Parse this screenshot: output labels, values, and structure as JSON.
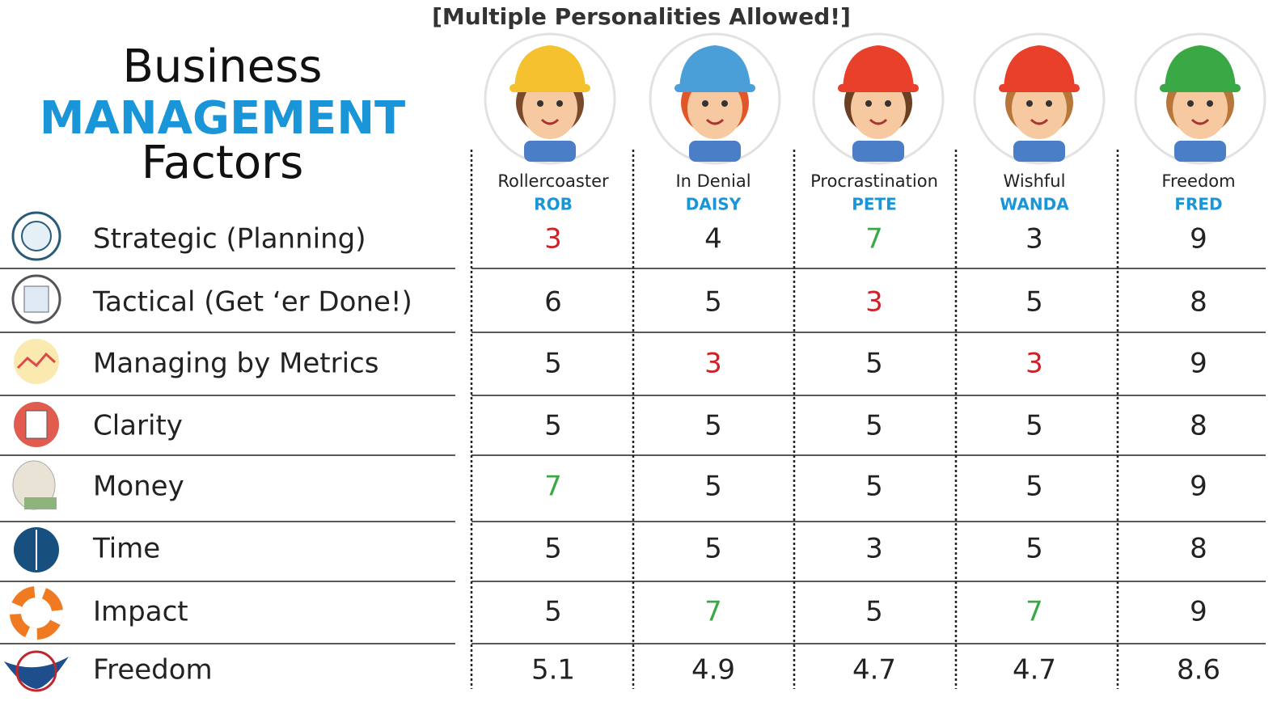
{
  "header": {
    "subtitle": "[Multiple Personalities Allowed!]",
    "title": [
      "Business",
      "MANAGEMENT",
      "Factors"
    ]
  },
  "table": {
    "columns": [
      {
        "role": "Rollercoaster",
        "name": "ROB"
      },
      {
        "role": "In Denial",
        "name": "DAISY"
      },
      {
        "role": "Procrastination",
        "name": "PETE"
      },
      {
        "role": "Wishful",
        "name": "WANDA"
      },
      {
        "role": "Freedom",
        "name": "FRED"
      }
    ],
    "rows": [
      {
        "label": "Strategic (Planning)",
        "values": [
          3,
          4,
          7,
          3,
          9
        ],
        "colors": [
          "#d0202a",
          "#222222",
          "#3aa845",
          "#222222",
          "#222222"
        ]
      },
      {
        "label": "Tactical (Get ‘er Done!)",
        "values": [
          6,
          5,
          3,
          5,
          8
        ],
        "colors": [
          "#222222",
          "#222222",
          "#d0202a",
          "#222222",
          "#222222"
        ]
      },
      {
        "label": "Managing by Metrics",
        "values": [
          5,
          3,
          5,
          3,
          9
        ],
        "colors": [
          "#222222",
          "#d0202a",
          "#222222",
          "#d0202a",
          "#222222"
        ]
      },
      {
        "label": "Clarity",
        "values": [
          5,
          5,
          5,
          5,
          8
        ],
        "colors": [
          "#222222",
          "#222222",
          "#222222",
          "#222222",
          "#222222"
        ]
      },
      {
        "label": "Money",
        "values": [
          7,
          5,
          5,
          5,
          9
        ],
        "colors": [
          "#3aa845",
          "#222222",
          "#222222",
          "#222222",
          "#222222"
        ]
      },
      {
        "label": "Time",
        "values": [
          5,
          5,
          3,
          5,
          8
        ],
        "colors": [
          "#222222",
          "#222222",
          "#222222",
          "#222222",
          "#222222"
        ]
      },
      {
        "label": "Impact",
        "values": [
          5,
          7,
          5,
          7,
          9
        ],
        "colors": [
          "#222222",
          "#3aa845",
          "#222222",
          "#3aa845",
          "#222222"
        ]
      },
      {
        "label": "Freedom",
        "values": [
          5.1,
          4.9,
          4.7,
          4.7,
          8.6
        ],
        "colors": [
          "#222222",
          "#222222",
          "#222222",
          "#222222",
          "#222222"
        ]
      }
    ]
  }
}
